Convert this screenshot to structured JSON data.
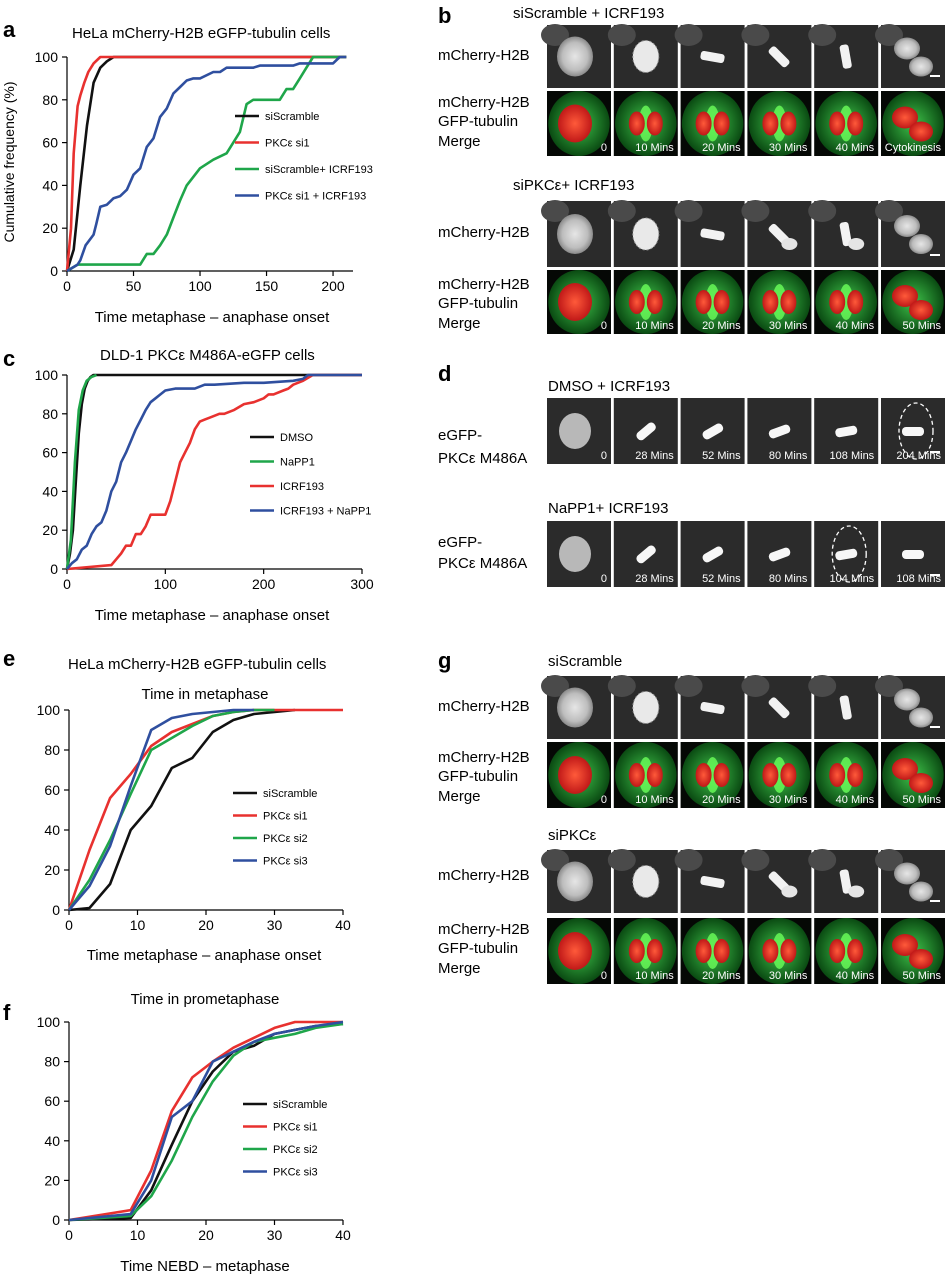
{
  "figure": {
    "panel_a": {
      "letter": "a",
      "title": "HeLa mCherry-H2B eGFP-tubulin cells",
      "ylabel": "Cumulative frequency (%)",
      "xlabel": "Time metaphase – anaphase onset",
      "legend": [
        "siScramble",
        "PKCε si1",
        "siScramble+ ICRF193",
        "PKCε si1 + ICRF193"
      ]
    },
    "panel_b": {
      "letter": "b",
      "cond1": "siScramble + ICRF193",
      "cond2": "siPKCε+ ICRF193",
      "row1": "mCherry-H2B",
      "row2": [
        "mCherry-H2B",
        "GFP-tubulin",
        "Merge"
      ],
      "times1": [
        "0",
        "10 Mins",
        "20 Mins",
        "30 Mins",
        "40 Mins",
        "Cytokinesis"
      ],
      "times2": [
        "0",
        "10 Mins",
        "20 Mins",
        "30 Mins",
        "40 Mins",
        "50 Mins"
      ]
    },
    "panel_c": {
      "letter": "c",
      "title": "DLD-1 PKCε M486A-eGFP cells",
      "xlabel": "Time metaphase – anaphase onset",
      "legend": [
        "DMSO",
        "NaPP1",
        "ICRF193",
        "ICRF193 + NaPP1"
      ]
    },
    "panel_d": {
      "letter": "d",
      "cond1": "DMSO + ICRF193",
      "cond2": "NaPP1+ ICRF193",
      "row": [
        "eGFP-",
        "PKCε M486A"
      ],
      "times1": [
        "0",
        "28 Mins",
        "52 Mins",
        "80 Mins",
        "108 Mins",
        "204 Mins"
      ],
      "times2": [
        "0",
        "28 Mins",
        "52 Mins",
        "80 Mins",
        "104 Mins",
        "108 Mins"
      ]
    },
    "panel_e": {
      "letter": "e",
      "title": "HeLa mCherry-H2B eGFP-tubulin cells",
      "subtitle": "Time in metaphase",
      "xlabel": "Time metaphase – anaphase onset",
      "legend": [
        "siScramble",
        "PKCε si1",
        "PKCε si2",
        "PKCε si3"
      ]
    },
    "panel_f": {
      "letter": "f",
      "subtitle": "Time in prometaphase",
      "xlabel": "Time NEBD – metaphase",
      "legend": [
        "siScramble",
        "PKCε si1",
        "PKCε si2",
        "PKCε si3"
      ]
    },
    "panel_g": {
      "letter": "g",
      "cond1": "siScramble",
      "cond2": "siPKCε",
      "row1": "mCherry-H2B",
      "row2": [
        "mCherry-H2B",
        "GFP-tubulin",
        "Merge"
      ],
      "times1": [
        "0",
        "10 Mins",
        "20 Mins",
        "30 Mins",
        "40 Mins",
        "50 Mins"
      ],
      "times2": [
        "0",
        "10 Mins",
        "20 Mins",
        "30 Mins",
        "40 Mins",
        "50 Mins"
      ]
    }
  },
  "colors": {
    "black": "#111111",
    "red": "#e8312f",
    "green": "#1fa64a",
    "blue": "#2f4f9f"
  },
  "chart_data": [
    {
      "id": "a",
      "type": "line",
      "xlim": [
        0,
        215
      ],
      "ylim": [
        0,
        100
      ],
      "xticks": [
        0,
        50,
        100,
        150,
        200
      ],
      "yticks": [
        0,
        20,
        40,
        60,
        80,
        100
      ],
      "series": [
        {
          "name": "siScramble",
          "color": "black",
          "x": [
            0,
            5,
            10,
            15,
            20,
            25,
            30,
            35,
            210
          ],
          "y": [
            0,
            10,
            40,
            68,
            88,
            95,
            98,
            100,
            100
          ]
        },
        {
          "name": "PKCε si1",
          "color": "red",
          "x": [
            0,
            3,
            5,
            8,
            10,
            13,
            16,
            20,
            25,
            30,
            210
          ],
          "y": [
            0,
            20,
            55,
            77,
            82,
            88,
            93,
            97,
            100,
            100,
            100
          ]
        },
        {
          "name": "siScramble+ ICRF193",
          "color": "green",
          "x": [
            0,
            8,
            55,
            60,
            65,
            70,
            75,
            80,
            85,
            90,
            95,
            100,
            110,
            120,
            125,
            130,
            135,
            140,
            160,
            165,
            170,
            175,
            180,
            185,
            210
          ],
          "y": [
            0,
            3,
            3,
            8,
            8,
            12,
            17,
            25,
            33,
            40,
            44,
            48,
            52,
            55,
            60,
            65,
            78,
            80,
            80,
            85,
            85,
            90,
            95,
            100,
            100
          ]
        },
        {
          "name": "PKCε si1 + ICRF193",
          "color": "blue",
          "x": [
            0,
            8,
            10,
            14,
            20,
            22,
            25,
            30,
            35,
            40,
            45,
            50,
            55,
            60,
            65,
            70,
            75,
            80,
            85,
            90,
            95,
            100,
            110,
            115,
            120,
            130,
            140,
            145,
            150,
            170,
            175,
            200,
            205,
            210
          ],
          "y": [
            0,
            3,
            5,
            12,
            17,
            22,
            30,
            31,
            34,
            35,
            38,
            45,
            48,
            58,
            62,
            72,
            76,
            83,
            86,
            89,
            90,
            90,
            93,
            93,
            95,
            95,
            95,
            96,
            96,
            96,
            97,
            97,
            100,
            100
          ]
        }
      ]
    },
    {
      "id": "c",
      "type": "line",
      "xlim": [
        0,
        300
      ],
      "ylim": [
        0,
        100
      ],
      "xticks": [
        0,
        100,
        200,
        300
      ],
      "yticks": [
        0,
        20,
        40,
        60,
        80,
        100
      ],
      "series": [
        {
          "name": "DMSO",
          "color": "black",
          "x": [
            0,
            3,
            6,
            9,
            12,
            15,
            18,
            21,
            24,
            27,
            30,
            300
          ],
          "y": [
            0,
            8,
            20,
            45,
            70,
            85,
            93,
            97,
            99,
            100,
            100,
            100
          ]
        },
        {
          "name": "NaPP1",
          "color": "green",
          "x": [
            0,
            4,
            8,
            12,
            16,
            20,
            25,
            30
          ],
          "y": [
            0,
            15,
            55,
            82,
            92,
            97,
            99,
            100
          ]
        },
        {
          "name": "ICRF193",
          "color": "red",
          "x": [
            0,
            45,
            50,
            55,
            60,
            65,
            70,
            75,
            80,
            85,
            90,
            95,
            100,
            105,
            110,
            115,
            120,
            125,
            130,
            135,
            140,
            145,
            155,
            160,
            170,
            180,
            190,
            200,
            205,
            210,
            220,
            225,
            230,
            240,
            250,
            300
          ],
          "y": [
            0,
            2,
            5,
            8,
            12,
            12,
            18,
            18,
            22,
            28,
            28,
            28,
            28,
            35,
            45,
            55,
            60,
            65,
            72,
            76,
            77,
            78,
            80,
            80,
            82,
            85,
            86,
            88,
            90,
            90,
            92,
            93,
            95,
            97,
            100,
            100
          ]
        },
        {
          "name": "ICRF193 + NaPP1",
          "color": "blue",
          "x": [
            0,
            5,
            10,
            15,
            20,
            25,
            30,
            35,
            40,
            45,
            50,
            55,
            60,
            65,
            70,
            75,
            80,
            85,
            90,
            95,
            100,
            110,
            120,
            130,
            140,
            150,
            180,
            200,
            230,
            240,
            245,
            300
          ],
          "y": [
            0,
            3,
            5,
            10,
            12,
            18,
            22,
            24,
            30,
            40,
            45,
            55,
            60,
            66,
            72,
            77,
            82,
            86,
            88,
            90,
            92,
            93,
            93,
            93,
            95,
            95,
            96,
            96,
            97,
            98,
            100,
            100
          ]
        }
      ]
    },
    {
      "id": "e",
      "type": "line",
      "xlim": [
        0,
        40
      ],
      "ylim": [
        0,
        100
      ],
      "xticks": [
        0,
        10,
        20,
        30,
        40
      ],
      "yticks": [
        0,
        20,
        40,
        60,
        80,
        100
      ],
      "series": [
        {
          "name": "siScramble",
          "color": "black",
          "x": [
            0,
            3,
            6,
            9,
            12,
            15,
            18,
            21,
            24,
            27,
            30,
            33
          ],
          "y": [
            0,
            1,
            13,
            40,
            52,
            71,
            76,
            89,
            95,
            98,
            99,
            100
          ]
        },
        {
          "name": "PKCε si1",
          "color": "red",
          "x": [
            0,
            3,
            6,
            9,
            12,
            15,
            18,
            21,
            24,
            27,
            30,
            33,
            40
          ],
          "y": [
            0,
            30,
            56,
            68,
            82,
            89,
            93,
            97,
            99,
            100,
            100,
            100,
            100
          ]
        },
        {
          "name": "PKCε si2",
          "color": "green",
          "x": [
            0,
            3,
            6,
            9,
            12,
            15,
            18,
            21,
            24,
            27,
            30
          ],
          "y": [
            0,
            15,
            35,
            58,
            80,
            86,
            92,
            97,
            99,
            100,
            100
          ]
        },
        {
          "name": "PKCε si3",
          "color": "blue",
          "x": [
            0,
            3,
            6,
            9,
            12,
            15,
            18,
            21,
            24,
            27
          ],
          "y": [
            0,
            12,
            32,
            62,
            90,
            96,
            98,
            99,
            100,
            100
          ]
        }
      ]
    },
    {
      "id": "f",
      "type": "line",
      "xlim": [
        0,
        40
      ],
      "ylim": [
        0,
        100
      ],
      "xticks": [
        0,
        10,
        20,
        30,
        40
      ],
      "yticks": [
        0,
        20,
        40,
        60,
        80,
        100
      ],
      "series": [
        {
          "name": "siScramble",
          "color": "black",
          "x": [
            0,
            9,
            12,
            15,
            18,
            21,
            24,
            27,
            30,
            33,
            36,
            40
          ],
          "y": [
            0,
            1,
            15,
            38,
            60,
            75,
            85,
            88,
            94,
            96,
            98,
            99
          ]
        },
        {
          "name": "PKCε si1",
          "color": "red",
          "x": [
            0,
            9,
            12,
            15,
            18,
            21,
            24,
            27,
            30,
            33,
            36,
            40
          ],
          "y": [
            0,
            5,
            25,
            55,
            72,
            80,
            87,
            92,
            97,
            100,
            100,
            100
          ]
        },
        {
          "name": "PKCε si2",
          "color": "green",
          "x": [
            0,
            9,
            12,
            15,
            18,
            21,
            24,
            27,
            30,
            33,
            36,
            40
          ],
          "y": [
            0,
            2,
            12,
            30,
            52,
            70,
            83,
            90,
            92,
            94,
            97,
            99
          ]
        },
        {
          "name": "PKCε si3",
          "color": "blue",
          "x": [
            0,
            9,
            12,
            15,
            18,
            21,
            24,
            27,
            30,
            33,
            36,
            40
          ],
          "y": [
            0,
            3,
            20,
            52,
            60,
            80,
            85,
            90,
            94,
            96,
            98,
            100
          ]
        }
      ]
    }
  ]
}
